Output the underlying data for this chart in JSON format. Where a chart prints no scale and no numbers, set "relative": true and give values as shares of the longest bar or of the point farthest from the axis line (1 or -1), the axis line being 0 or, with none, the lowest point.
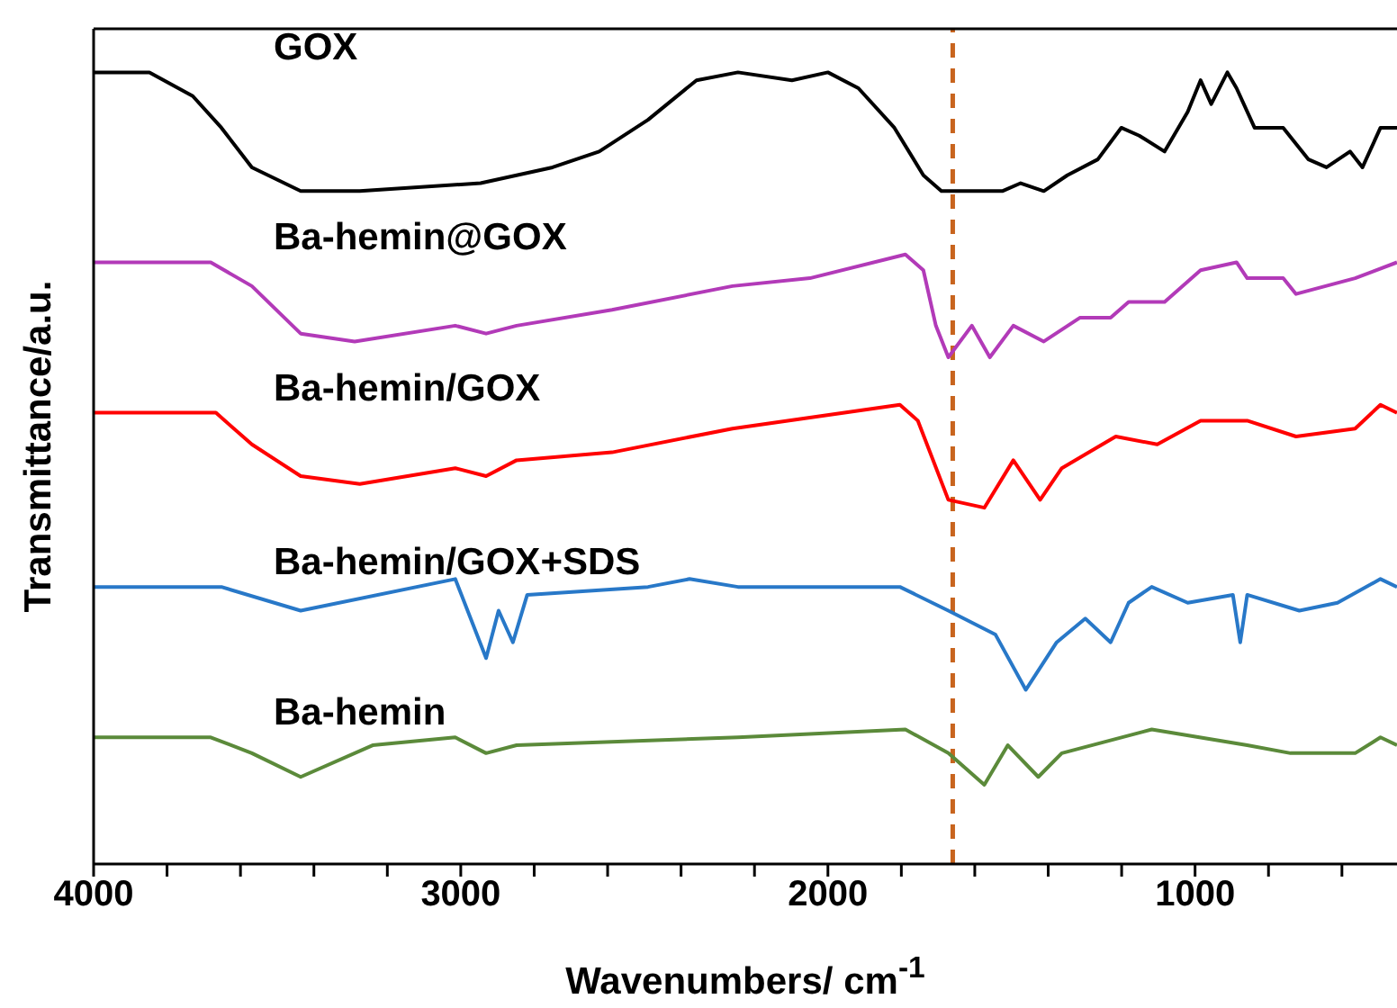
{
  "chart_data": {
    "type": "line",
    "relative": true,
    "xlabel": "Wavenumbers/ cm$^{-1}$",
    "ylabel": "Transmittance/a.u.",
    "xlim": [
      4000,
      450
    ],
    "xticks": [
      4000,
      {
        "value": 3800,
        "label": null
      },
      {
        "value": 3600,
        "label": null
      },
      {
        "value": 3400,
        "label": null
      },
      {
        "value": 3200,
        "label": null
      },
      3000,
      {
        "value": 2800,
        "label": null
      },
      {
        "value": 2600,
        "label": null
      },
      {
        "value": 2400,
        "label": null
      },
      {
        "value": 2200,
        "label": null
      },
      2000,
      {
        "value": 1800,
        "label": null
      },
      {
        "value": 1600,
        "label": null
      },
      {
        "value": 1400,
        "label": null
      },
      {
        "value": 1200,
        "label": null
      },
      1000,
      {
        "value": 800,
        "label": null
      },
      {
        "value": 600,
        "label": null
      }
    ],
    "ref_lines": [
      {
        "axis": "x",
        "value": 1660,
        "color": "#c8641e",
        "line_style": "dashed"
      }
    ],
    "series": [
      {
        "name": "GOX",
        "color": "#000000",
        "x": [
          4000,
          3848,
          3730,
          3652,
          3569,
          3436,
          3275,
          2946,
          2750,
          2623,
          2490,
          2358,
          2245,
          2098,
          2000,
          1917,
          1819,
          1740,
          1691,
          1525,
          1475,
          1412,
          1348,
          1265,
          1201,
          1152,
          1083,
          1020,
          985,
          956,
          912,
          887,
          838,
          760,
          691,
          642,
          578,
          544,
          495,
          450
        ],
        "values": [
          1.0,
          1.0,
          0.97,
          0.93,
          0.88,
          0.85,
          0.85,
          0.86,
          0.88,
          0.9,
          0.94,
          0.99,
          1.0,
          0.99,
          1.0,
          0.98,
          0.93,
          0.87,
          0.85,
          0.85,
          0.86,
          0.85,
          0.87,
          0.89,
          0.93,
          0.92,
          0.9,
          0.95,
          0.99,
          0.96,
          1.0,
          0.98,
          0.93,
          0.93,
          0.89,
          0.88,
          0.9,
          0.88,
          0.93,
          0.93
        ]
      },
      {
        "name": "Ba-hemin@GOX",
        "color": "#b23ab8",
        "x": [
          4000,
          3681,
          3569,
          3436,
          3289,
          3015,
          2931,
          2848,
          2588,
          2260,
          2049,
          1789,
          1740,
          1706,
          1672,
          1608,
          1559,
          1495,
          1412,
          1314,
          1230,
          1181,
          1083,
          985,
          887,
          858,
          760,
          725,
          564,
          450
        ],
        "values": [
          0.76,
          0.76,
          0.73,
          0.67,
          0.66,
          0.68,
          0.67,
          0.68,
          0.7,
          0.73,
          0.74,
          0.77,
          0.75,
          0.68,
          0.64,
          0.68,
          0.64,
          0.68,
          0.66,
          0.69,
          0.69,
          0.71,
          0.71,
          0.75,
          0.76,
          0.74,
          0.74,
          0.72,
          0.74,
          0.76
        ]
      },
      {
        "name": "Ba-hemin/GOX",
        "color": "#ff0000",
        "x": [
          4000,
          3667,
          3569,
          3436,
          3275,
          3015,
          2931,
          2848,
          2588,
          2260,
          1804,
          1755,
          1672,
          1574,
          1495,
          1422,
          1363,
          1216,
          1103,
          985,
          858,
          725,
          564,
          495,
          450
        ],
        "values": [
          0.57,
          0.57,
          0.53,
          0.49,
          0.48,
          0.5,
          0.49,
          0.51,
          0.52,
          0.55,
          0.58,
          0.56,
          0.46,
          0.45,
          0.51,
          0.46,
          0.5,
          0.54,
          0.53,
          0.56,
          0.56,
          0.54,
          0.55,
          0.58,
          0.57
        ]
      },
      {
        "name": "Ba-hemin/GOX+SDS",
        "color": "#2878c8",
        "x": [
          4000,
          3652,
          3436,
          3015,
          2931,
          2897,
          2858,
          2819,
          2490,
          2377,
          2245,
          1804,
          1672,
          1544,
          1461,
          1377,
          1299,
          1230,
          1181,
          1118,
          1020,
          897,
          877,
          858,
          716,
          612,
          495,
          450
        ],
        "values": [
          0.35,
          0.35,
          0.32,
          0.36,
          0.26,
          0.32,
          0.28,
          0.34,
          0.35,
          0.36,
          0.35,
          0.35,
          0.32,
          0.29,
          0.22,
          0.28,
          0.31,
          0.28,
          0.33,
          0.35,
          0.33,
          0.34,
          0.28,
          0.34,
          0.32,
          0.33,
          0.36,
          0.35
        ]
      },
      {
        "name": "Ba-hemin",
        "color": "#5b8a3a",
        "x": [
          4000,
          3681,
          3569,
          3436,
          3240,
          3015,
          2931,
          2848,
          2245,
          1789,
          1672,
          1574,
          1510,
          1427,
          1363,
          1118,
          858,
          740,
          564,
          495,
          450
        ],
        "values": [
          0.16,
          0.16,
          0.14,
          0.11,
          0.15,
          0.16,
          0.14,
          0.15,
          0.16,
          0.17,
          0.14,
          0.1,
          0.15,
          0.11,
          0.14,
          0.17,
          0.15,
          0.14,
          0.14,
          0.16,
          0.15
        ]
      }
    ]
  }
}
